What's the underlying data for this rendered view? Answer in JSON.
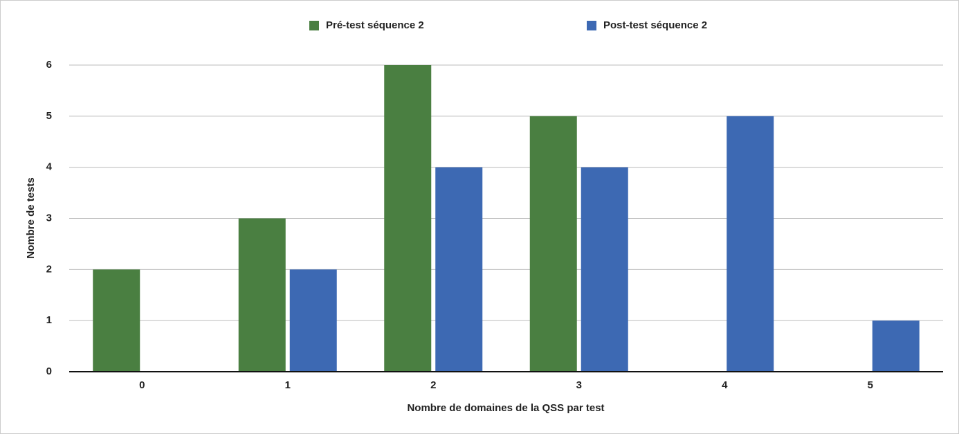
{
  "chart_data": {
    "type": "bar",
    "x_label": "Nombre de domaines de la QSS par test",
    "y_label": "Nombre de tests",
    "categories": [
      "0",
      "1",
      "2",
      "3",
      "4",
      "5"
    ],
    "series": [
      {
        "name": "Pré-test séquence 2",
        "color": "#4a7f41",
        "values": [
          2,
          3,
          6,
          5,
          0,
          0
        ]
      },
      {
        "name": "Post-test séquence 2",
        "color": "#3d69b3",
        "values": [
          0,
          2,
          4,
          4,
          5,
          1
        ]
      }
    ],
    "ylim": [
      0,
      6
    ],
    "yticks": [
      0,
      1,
      2,
      3,
      4,
      5,
      6
    ],
    "grid": true,
    "legend": "top"
  }
}
